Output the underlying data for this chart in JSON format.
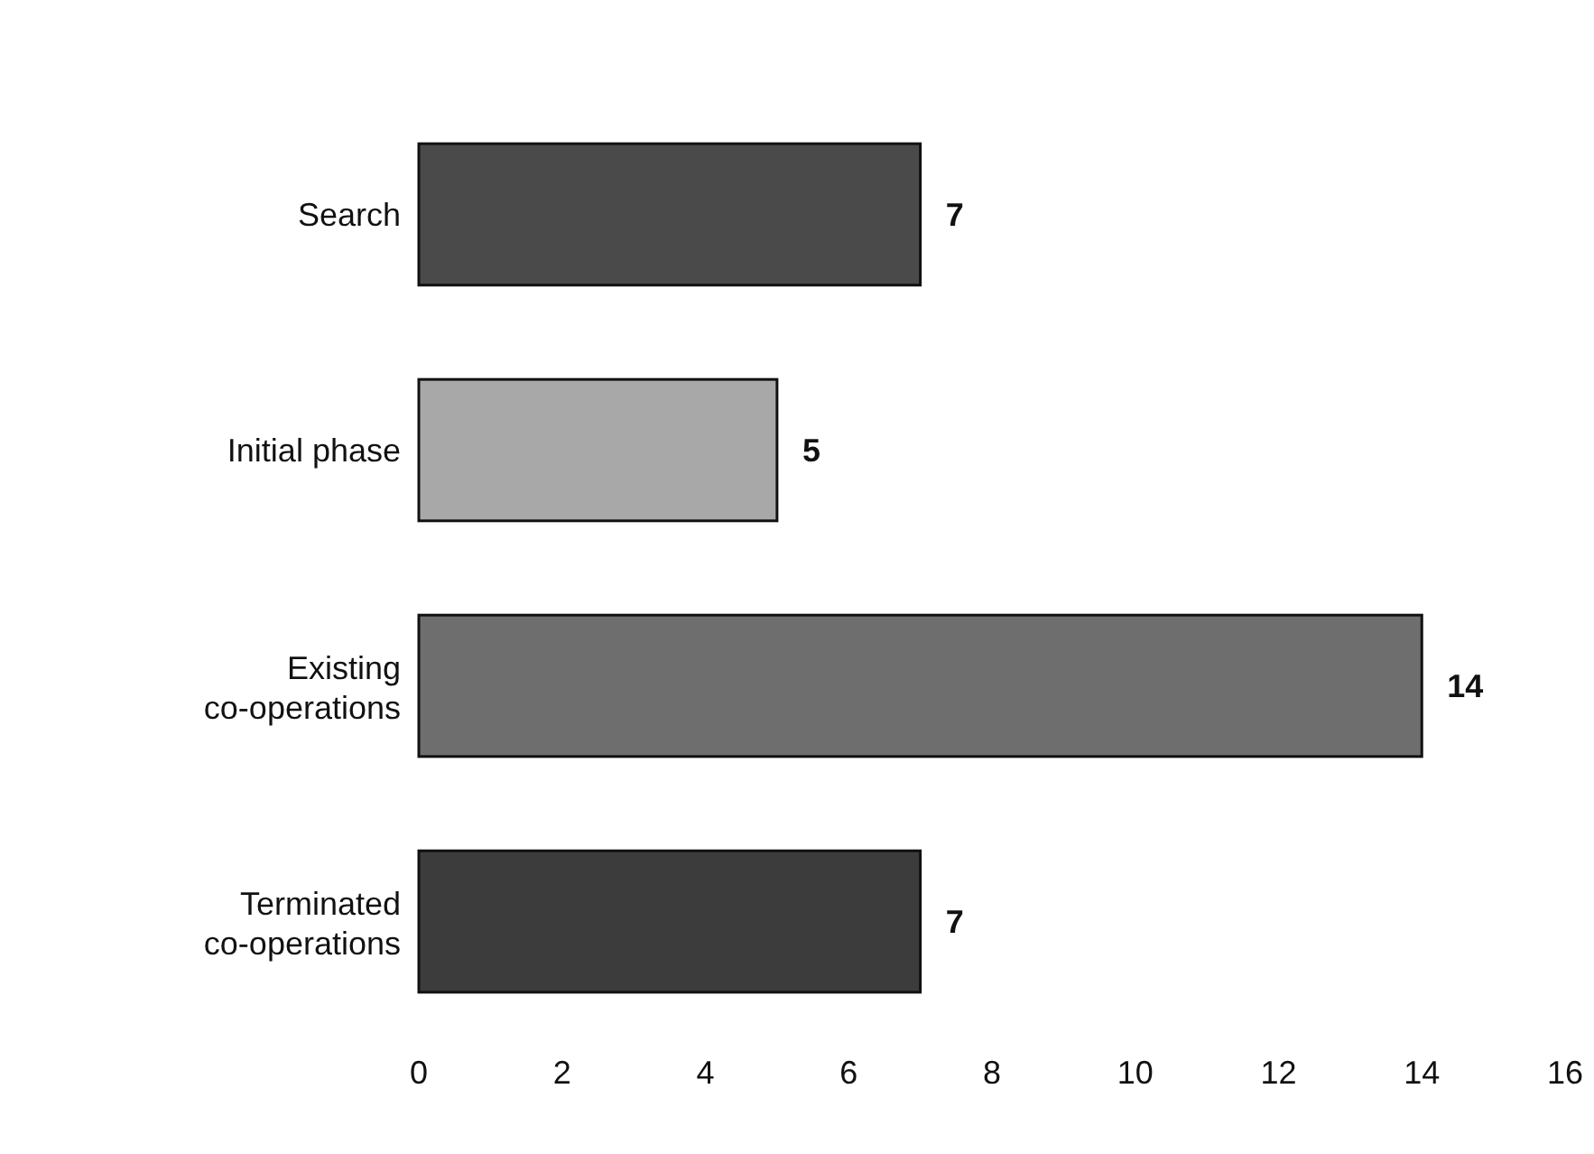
{
  "chart_data": {
    "type": "bar",
    "orientation": "horizontal",
    "categories": [
      "Search",
      "Initial phase",
      "Existing co-operations",
      "Terminated co-operations"
    ],
    "values": [
      7,
      5,
      14,
      7
    ],
    "colors": [
      "#4a4a4a",
      "#a8a8a8",
      "#6e6e6e",
      "#3c3c3c"
    ],
    "xlim": [
      0,
      16
    ],
    "xticks": [
      0,
      2,
      4,
      6,
      8,
      10,
      12,
      14,
      16
    ],
    "data_labels": true,
    "grid": false
  }
}
